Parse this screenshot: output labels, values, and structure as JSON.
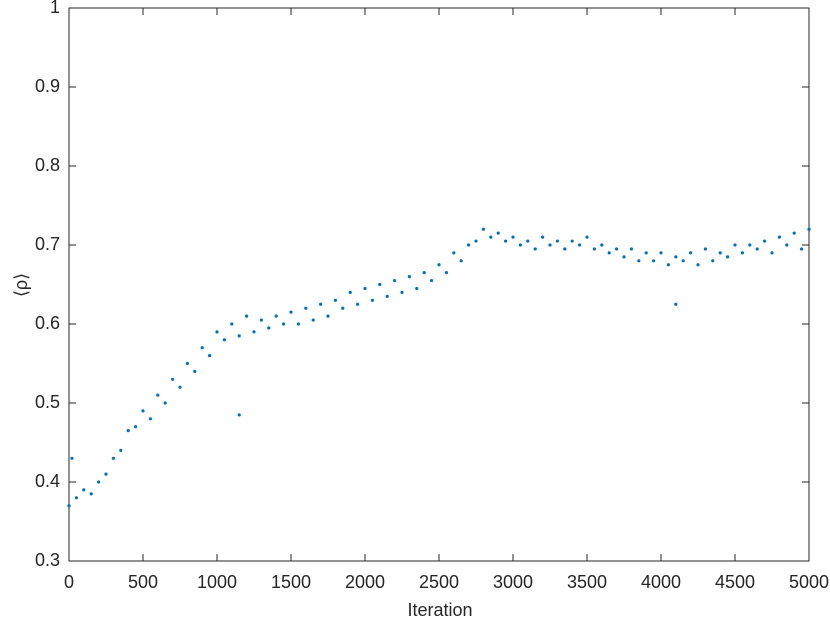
{
  "chart_data": {
    "type": "scatter",
    "xlabel": "Iteration",
    "ylabel": "⟨ρ⟩",
    "color": "#0072bd",
    "xlim": [
      0,
      5000
    ],
    "ylim": [
      0.3,
      1
    ],
    "xticks": [
      0,
      500,
      1000,
      1500,
      2000,
      2500,
      3000,
      3500,
      4000,
      4500,
      5000
    ],
    "yticks": [
      0.3,
      0.4,
      0.5,
      0.6,
      0.7,
      0.8,
      0.9,
      1
    ],
    "x": [
      0,
      50,
      100,
      150,
      200,
      250,
      300,
      350,
      400,
      450,
      500,
      550,
      600,
      650,
      700,
      750,
      800,
      850,
      900,
      950,
      1000,
      1050,
      1100,
      1150,
      1200,
      1250,
      1300,
      1350,
      1400,
      1450,
      1500,
      1550,
      1600,
      1650,
      1700,
      1750,
      1800,
      1850,
      1900,
      1950,
      2000,
      2050,
      2100,
      2150,
      2200,
      2250,
      2300,
      2350,
      2400,
      2450,
      2500,
      2550,
      2600,
      2650,
      2700,
      2750,
      2800,
      2850,
      2900,
      2950,
      3000,
      3050,
      3100,
      3150,
      3200,
      3250,
      3300,
      3350,
      3400,
      3450,
      3500,
      3550,
      3600,
      3650,
      3700,
      3750,
      3800,
      3850,
      3900,
      3950,
      4000,
      4050,
      4100,
      4150,
      4200,
      4250,
      4300,
      4350,
      4400,
      4450,
      4500,
      4550,
      4600,
      4650,
      4700,
      4750,
      4800,
      4850,
      4900,
      4950,
      5000,
      1150,
      20,
      4100
    ],
    "values": [
      0.37,
      0.38,
      0.39,
      0.385,
      0.4,
      0.41,
      0.43,
      0.44,
      0.465,
      0.47,
      0.49,
      0.48,
      0.51,
      0.5,
      0.53,
      0.52,
      0.55,
      0.54,
      0.57,
      0.56,
      0.59,
      0.58,
      0.6,
      0.585,
      0.61,
      0.59,
      0.605,
      0.595,
      0.61,
      0.6,
      0.615,
      0.6,
      0.62,
      0.605,
      0.625,
      0.61,
      0.63,
      0.62,
      0.64,
      0.625,
      0.645,
      0.63,
      0.65,
      0.635,
      0.655,
      0.64,
      0.66,
      0.645,
      0.665,
      0.655,
      0.675,
      0.665,
      0.69,
      0.68,
      0.7,
      0.705,
      0.72,
      0.71,
      0.715,
      0.705,
      0.71,
      0.7,
      0.705,
      0.695,
      0.71,
      0.7,
      0.705,
      0.695,
      0.705,
      0.7,
      0.71,
      0.695,
      0.7,
      0.69,
      0.695,
      0.685,
      0.695,
      0.68,
      0.69,
      0.68,
      0.69,
      0.675,
      0.685,
      0.68,
      0.69,
      0.675,
      0.695,
      0.68,
      0.69,
      0.685,
      0.7,
      0.69,
      0.7,
      0.695,
      0.705,
      0.69,
      0.71,
      0.7,
      0.715,
      0.695,
      0.72,
      0.485,
      0.43,
      0.625
    ]
  }
}
